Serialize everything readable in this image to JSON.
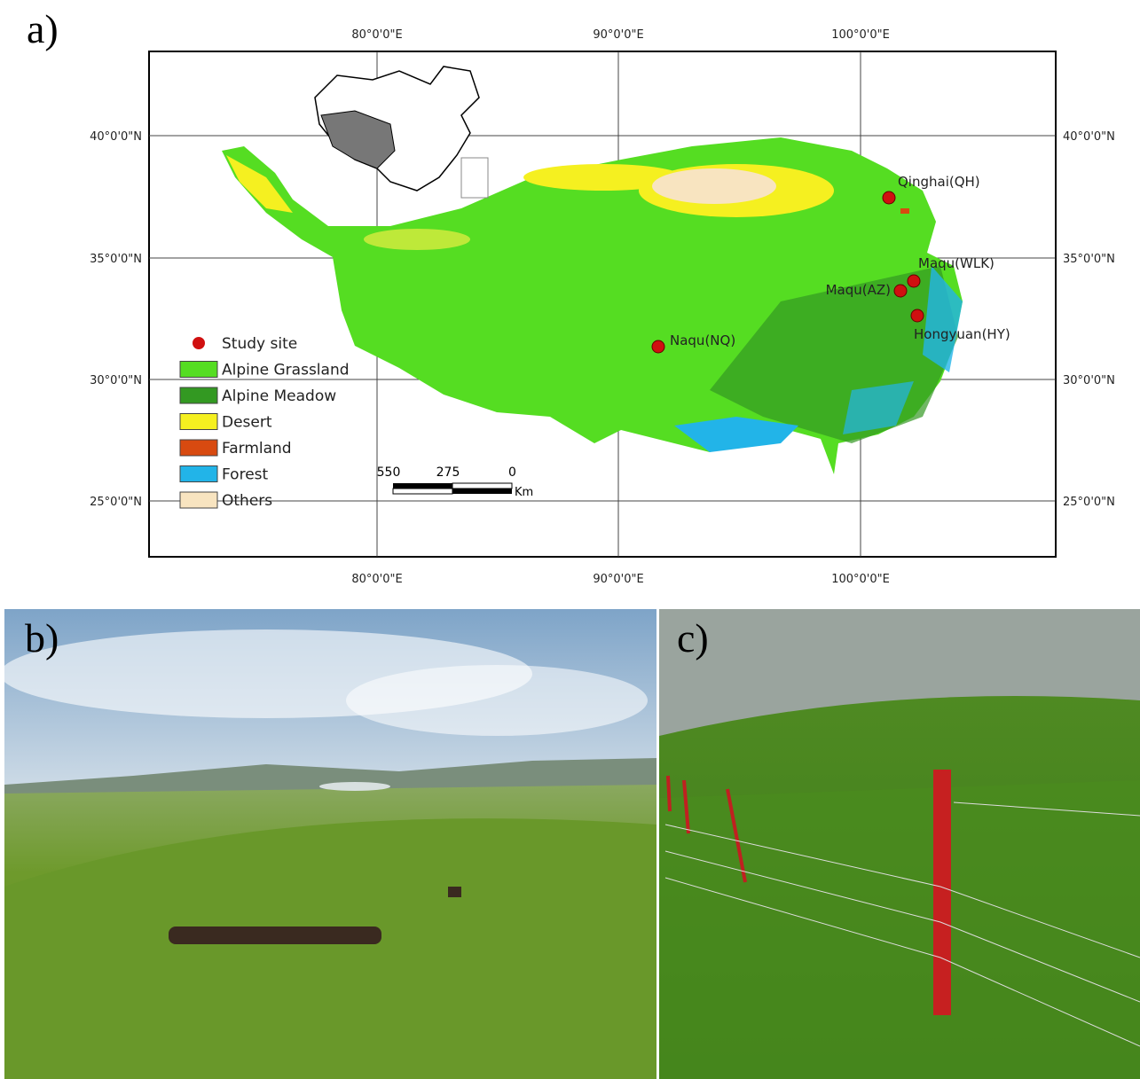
{
  "panels": [
    {
      "label": "a)"
    },
    {
      "label": "b)"
    },
    {
      "label": "c)"
    }
  ],
  "map": {
    "lon_labels": [
      "80°0'0\"E",
      "90°0'0\"E",
      "100°0'0\"E"
    ],
    "lat_labels": [
      "40°0'0\"N",
      "35°0'0\"N",
      "30°0'0\"N",
      "25°0'0\"N"
    ],
    "sites": [
      {
        "label": "Qinghai(QH)"
      },
      {
        "label": "Maqu(WLK)"
      },
      {
        "label": "Maqu(AZ)"
      },
      {
        "label": "Hongyuan(HY)"
      },
      {
        "label": "Naqu(NQ)"
      }
    ],
    "legend": [
      {
        "label": "Study site",
        "color": "#d01010"
      },
      {
        "label": "Alpine Grassland",
        "color": "#55dd22"
      },
      {
        "label": "Alpine Meadow",
        "color": "#339922"
      },
      {
        "label": "Desert",
        "color": "#f5f020"
      },
      {
        "label": "Farmland",
        "color": "#d84a10"
      },
      {
        "label": "Forest",
        "color": "#22b4e8"
      },
      {
        "label": "Others",
        "color": "#f8e4c0"
      }
    ],
    "scale_bar": {
      "ticks": [
        550,
        275,
        0
      ],
      "unit": "Km"
    }
  }
}
